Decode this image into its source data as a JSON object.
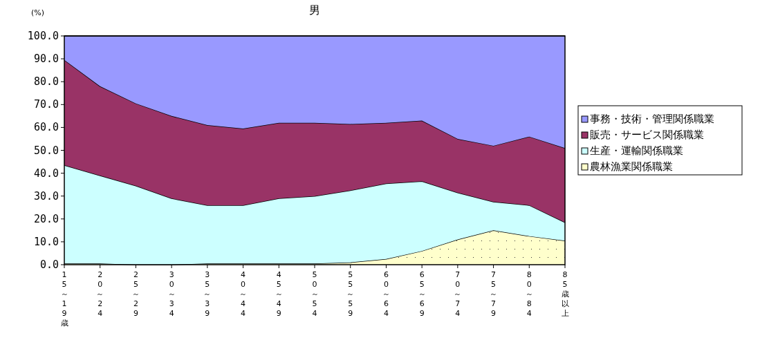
{
  "chart_data": {
    "type": "area",
    "stacked": true,
    "title": "男",
    "ylabel": "(%)",
    "categories": [
      "15～19歳",
      "20～24",
      "25～29",
      "30～34",
      "35～39",
      "40～44",
      "45～49",
      "50～54",
      "55～59",
      "60～64",
      "65～69",
      "70～74",
      "75～79",
      "80～84",
      "85歳以上"
    ],
    "series": [
      {
        "name": "農林漁業関係職業",
        "color": "#ffffcc",
        "values": [
          0.5,
          0.5,
          0,
          0,
          0.5,
          0.5,
          0.5,
          0.5,
          1,
          2.5,
          6,
          11,
          15,
          12.5,
          10.5
        ]
      },
      {
        "name": "生産・運輸関係職業",
        "color": "#ccffff",
        "values": [
          43,
          38.5,
          34.5,
          29,
          25.5,
          25.5,
          28.5,
          29.5,
          31.5,
          33,
          30.5,
          20.5,
          12.5,
          13.5,
          8
        ]
      },
      {
        "name": "販売・サービス関係職業",
        "color": "#993366",
        "values": [
          46,
          39,
          36,
          36,
          35,
          33.5,
          33,
          32,
          29,
          26.5,
          26.5,
          23.5,
          24.5,
          30,
          32.5
        ]
      },
      {
        "name": "事務・技術・管理関係職業",
        "color": "#9999ff",
        "values": [
          10.5,
          22,
          29.5,
          35,
          39,
          40.5,
          38,
          38,
          38.5,
          38,
          37,
          45,
          48,
          44,
          49
        ]
      }
    ],
    "ylim": [
      0,
      100
    ],
    "yticks": [
      {
        "value": 0,
        "label": "0.0"
      },
      {
        "value": 10,
        "label": "10.0"
      },
      {
        "value": 20,
        "label": "20.0"
      },
      {
        "value": 30,
        "label": "30.0"
      },
      {
        "value": 40,
        "label": "40.0"
      },
      {
        "value": 50,
        "label": "50.0"
      },
      {
        "value": 60,
        "label": "60.0"
      },
      {
        "value": 70,
        "label": "70.0"
      },
      {
        "value": 80,
        "label": "80.0"
      },
      {
        "value": 90,
        "label": "90.0"
      },
      {
        "value": 100,
        "label": "100.0"
      }
    ],
    "grid": false,
    "legend": "right"
  }
}
